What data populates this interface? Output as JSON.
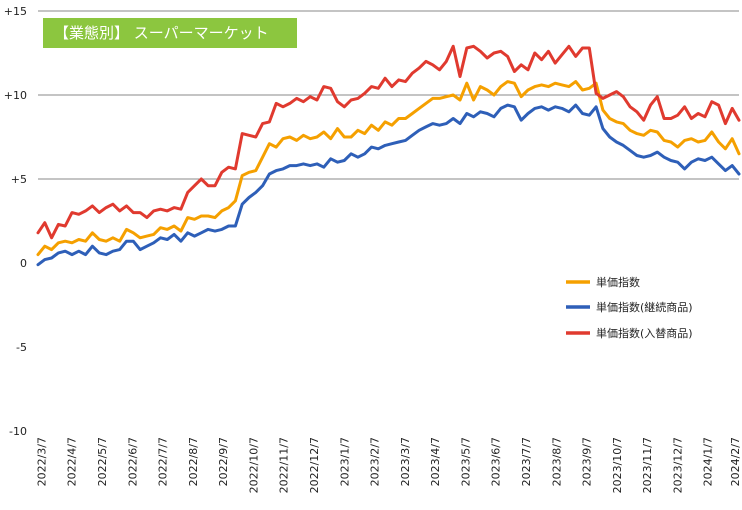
{
  "chart_data": {
    "type": "line",
    "title": "【業態別】 スーパーマーケット",
    "title_box_color": "#8CC63F",
    "xlabel": "",
    "ylabel": "",
    "ylim": [
      -10,
      15
    ],
    "yticks": [
      15,
      10,
      5,
      0,
      -5,
      -10
    ],
    "ytick_labels": [
      "+15",
      "+10",
      "+5",
      "0",
      "-5",
      "-10"
    ],
    "grid": "horizontal at +5, +10, +15",
    "legend_position": "right-middle",
    "x_tick_labels": [
      "2022/3/7",
      "2022/4/7",
      "2022/5/7",
      "2022/6/7",
      "2022/7/7",
      "2022/8/7",
      "2022/9/7",
      "2022/10/7",
      "2022/11/7",
      "2022/12/7",
      "2023/1/7",
      "2023/2/7",
      "2023/3/7",
      "2023/4/7",
      "2023/5/7",
      "2023/6/7",
      "2023/7/7",
      "2023/8/7",
      "2023/9/7",
      "2023/10/7",
      "2023/11/7",
      "2023/12/7",
      "2024/1/7",
      "2024/2/7"
    ],
    "x_frequency": "weekly",
    "series": [
      {
        "name": "単価指数",
        "color": "#F5A000",
        "values": [
          0.5,
          1.0,
          0.8,
          1.2,
          1.3,
          1.2,
          1.4,
          1.3,
          1.8,
          1.4,
          1.3,
          1.5,
          1.3,
          2.0,
          1.8,
          1.5,
          1.6,
          1.7,
          2.1,
          2.0,
          2.2,
          1.9,
          2.7,
          2.6,
          2.8,
          2.8,
          2.7,
          3.1,
          3.3,
          3.7,
          5.2,
          5.4,
          5.5,
          6.3,
          7.1,
          6.9,
          7.4,
          7.5,
          7.3,
          7.6,
          7.4,
          7.5,
          7.8,
          7.4,
          8.0,
          7.5,
          7.5,
          7.9,
          7.7,
          8.2,
          7.9,
          8.4,
          8.2,
          8.6,
          8.6,
          8.9,
          9.2,
          9.5,
          9.8,
          9.8,
          9.9,
          10.0,
          9.7,
          10.7,
          9.7,
          10.5,
          10.3,
          10.0,
          10.5,
          10.8,
          10.7,
          9.9,
          10.3,
          10.5,
          10.6,
          10.5,
          10.7,
          10.6,
          10.5,
          10.8,
          10.3,
          10.4,
          10.7,
          9.1,
          8.6,
          8.4,
          8.3,
          7.9,
          7.7,
          7.6,
          7.9,
          7.8,
          7.3,
          7.2,
          6.9,
          7.3,
          7.4,
          7.2,
          7.3,
          7.8,
          7.2,
          6.8,
          7.4,
          6.5
        ]
      },
      {
        "name": "単価指数(継続商品)",
        "color": "#2E5FB8",
        "values": [
          -0.1,
          0.2,
          0.3,
          0.6,
          0.7,
          0.5,
          0.7,
          0.5,
          1.0,
          0.6,
          0.5,
          0.7,
          0.8,
          1.3,
          1.3,
          0.8,
          1.0,
          1.2,
          1.5,
          1.4,
          1.7,
          1.3,
          1.8,
          1.6,
          1.8,
          2.0,
          1.9,
          2.0,
          2.2,
          2.2,
          3.5,
          3.9,
          4.2,
          4.6,
          5.3,
          5.5,
          5.6,
          5.8,
          5.8,
          5.9,
          5.8,
          5.9,
          5.7,
          6.2,
          6.0,
          6.1,
          6.5,
          6.3,
          6.5,
          6.9,
          6.8,
          7.0,
          7.1,
          7.2,
          7.3,
          7.6,
          7.9,
          8.1,
          8.3,
          8.2,
          8.3,
          8.6,
          8.3,
          8.9,
          8.7,
          9.0,
          8.9,
          8.7,
          9.2,
          9.4,
          9.3,
          8.5,
          8.9,
          9.2,
          9.3,
          9.1,
          9.3,
          9.2,
          9.0,
          9.4,
          8.9,
          8.8,
          9.3,
          8.0,
          7.5,
          7.2,
          7.0,
          6.7,
          6.4,
          6.3,
          6.4,
          6.6,
          6.3,
          6.1,
          6.0,
          5.6,
          6.0,
          6.2,
          6.1,
          6.3,
          5.9,
          5.5,
          5.8,
          5.3
        ]
      },
      {
        "name": "単価指数(入替商品)",
        "color": "#E03A2F",
        "values": [
          1.8,
          2.4,
          1.5,
          2.3,
          2.2,
          3.0,
          2.9,
          3.1,
          3.4,
          3.0,
          3.3,
          3.5,
          3.1,
          3.4,
          3.0,
          3.0,
          2.7,
          3.1,
          3.2,
          3.1,
          3.3,
          3.2,
          4.2,
          4.6,
          5.0,
          4.6,
          4.6,
          5.4,
          5.7,
          5.6,
          7.7,
          7.6,
          7.5,
          8.3,
          8.4,
          9.5,
          9.3,
          9.5,
          9.8,
          9.6,
          9.9,
          9.7,
          10.5,
          10.4,
          9.6,
          9.3,
          9.7,
          9.8,
          10.1,
          10.5,
          10.4,
          11.0,
          10.5,
          10.9,
          10.8,
          11.3,
          11.6,
          12.0,
          11.8,
          11.5,
          12.0,
          12.9,
          11.1,
          12.8,
          12.9,
          12.6,
          12.2,
          12.5,
          12.6,
          12.3,
          11.4,
          11.8,
          11.5,
          12.5,
          12.1,
          12.6,
          11.9,
          12.4,
          12.9,
          12.3,
          12.8,
          12.8,
          10.1,
          9.8,
          10.0,
          10.2,
          9.9,
          9.3,
          9.0,
          8.5,
          9.4,
          9.9,
          8.6,
          8.6,
          8.8,
          9.3,
          8.6,
          8.9,
          8.7,
          9.6,
          9.4,
          8.3,
          9.2,
          8.5
        ]
      }
    ]
  }
}
